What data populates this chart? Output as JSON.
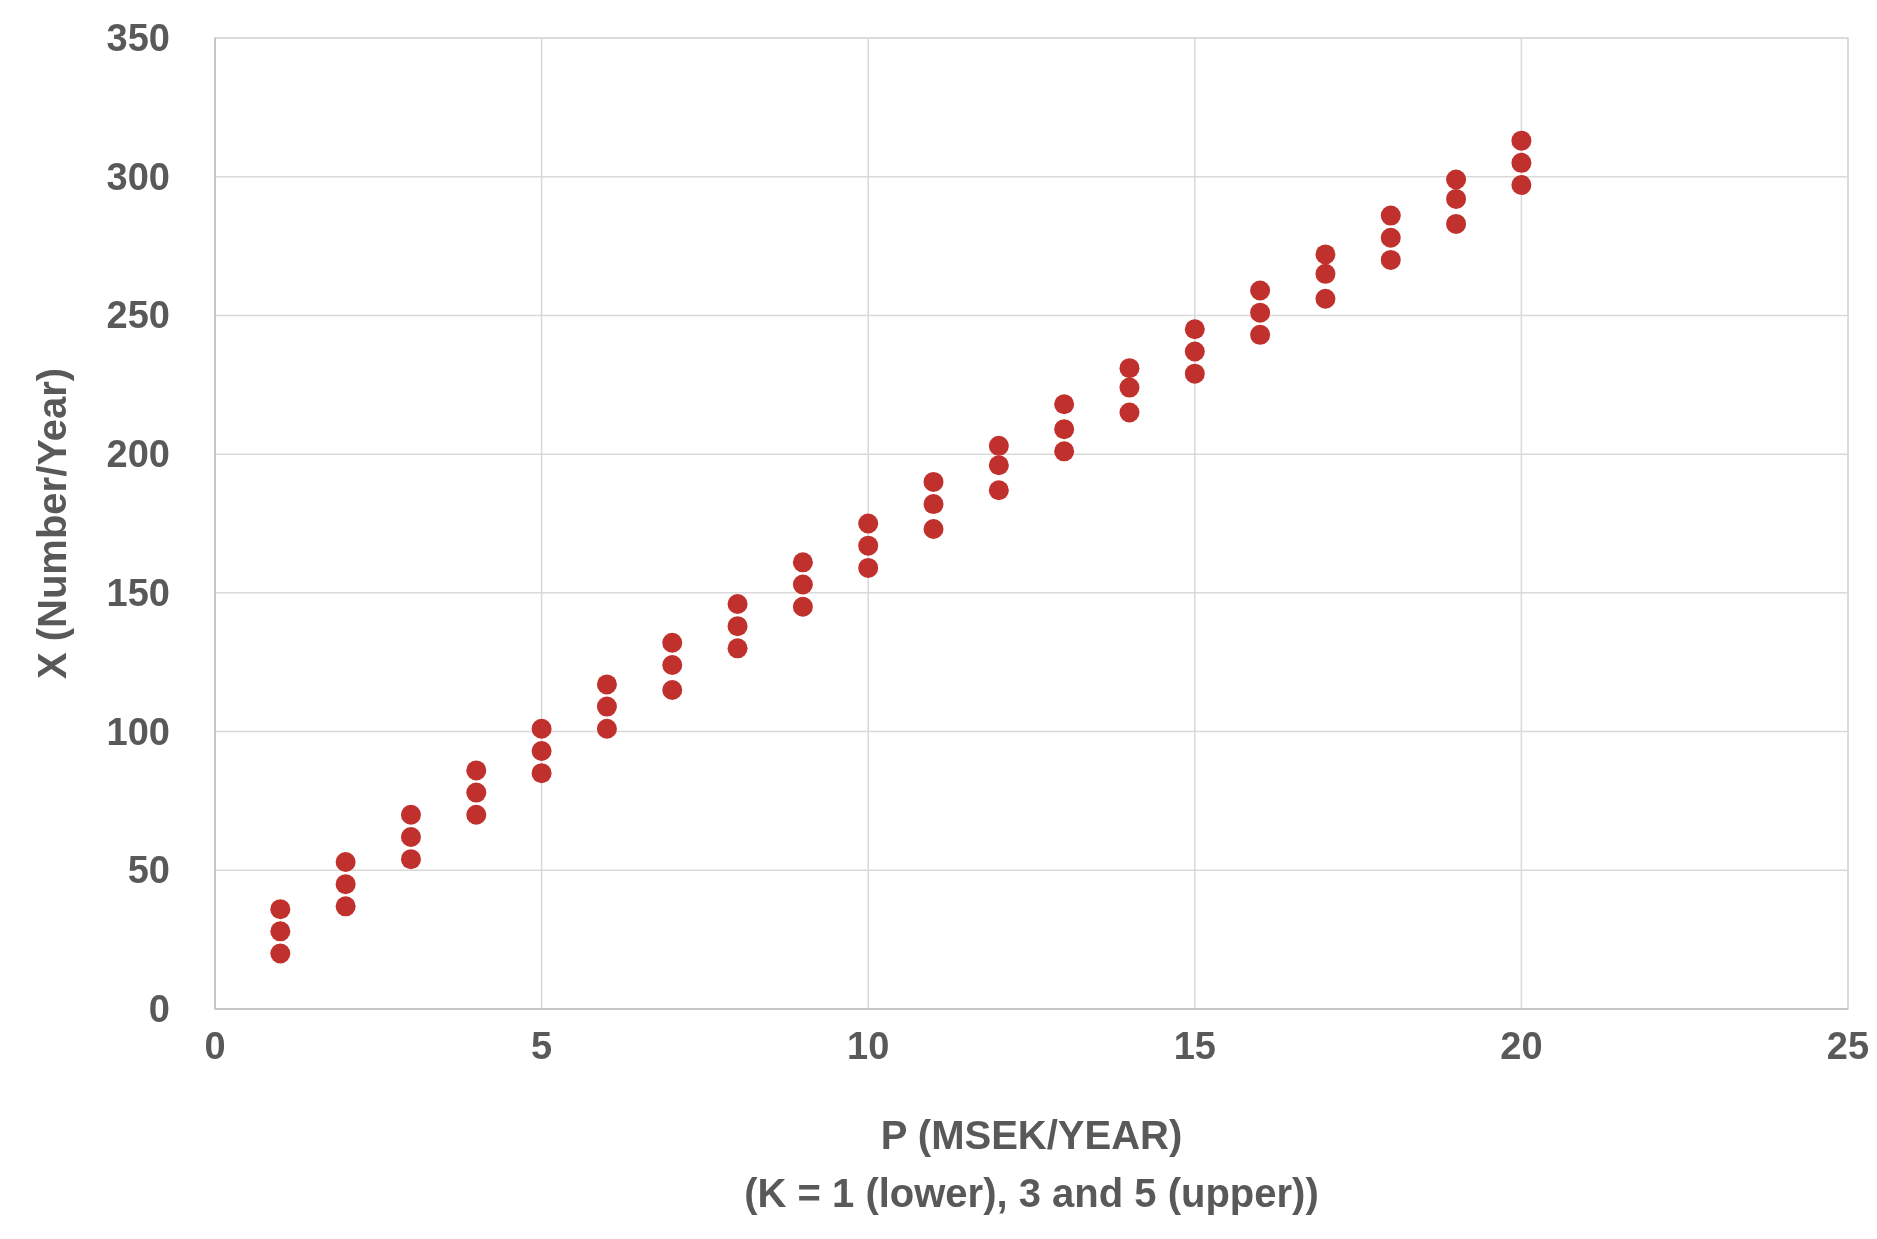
{
  "chart_data": {
    "type": "scatter",
    "xlabel": "P (MSEK/YEAR)\n(K = 1 (lower), 3 and 5 (upper))",
    "ylabel": "X (Number/Year)",
    "x": [
      1,
      2,
      3,
      4,
      5,
      6,
      7,
      8,
      9,
      10,
      11,
      12,
      13,
      14,
      15,
      16,
      17,
      18,
      19,
      20
    ],
    "series": [
      {
        "color": "#c0302c",
        "values": [
          20,
          37,
          54,
          70,
          85,
          101,
          115,
          130,
          145,
          159,
          173,
          187,
          201,
          215,
          229,
          243,
          256,
          270,
          283,
          297
        ]
      },
      {
        "color": "#c0302c",
        "values": [
          28,
          45,
          62,
          78,
          93,
          109,
          124,
          138,
          153,
          167,
          182,
          196,
          209,
          224,
          237,
          251,
          265,
          278,
          292,
          305
        ]
      },
      {
        "color": "#c0302c",
        "values": [
          36,
          53,
          70,
          86,
          101,
          117,
          132,
          146,
          161,
          175,
          190,
          203,
          218,
          231,
          245,
          259,
          272,
          286,
          299,
          313
        ]
      }
    ],
    "xlim": [
      0,
      25
    ],
    "xticks": [
      0,
      5,
      10,
      15,
      20,
      25
    ],
    "ylim": [
      0,
      350
    ],
    "yticks": [
      0,
      50,
      100,
      150,
      200,
      250,
      300,
      350
    ],
    "grid": true,
    "marker": "circle"
  }
}
